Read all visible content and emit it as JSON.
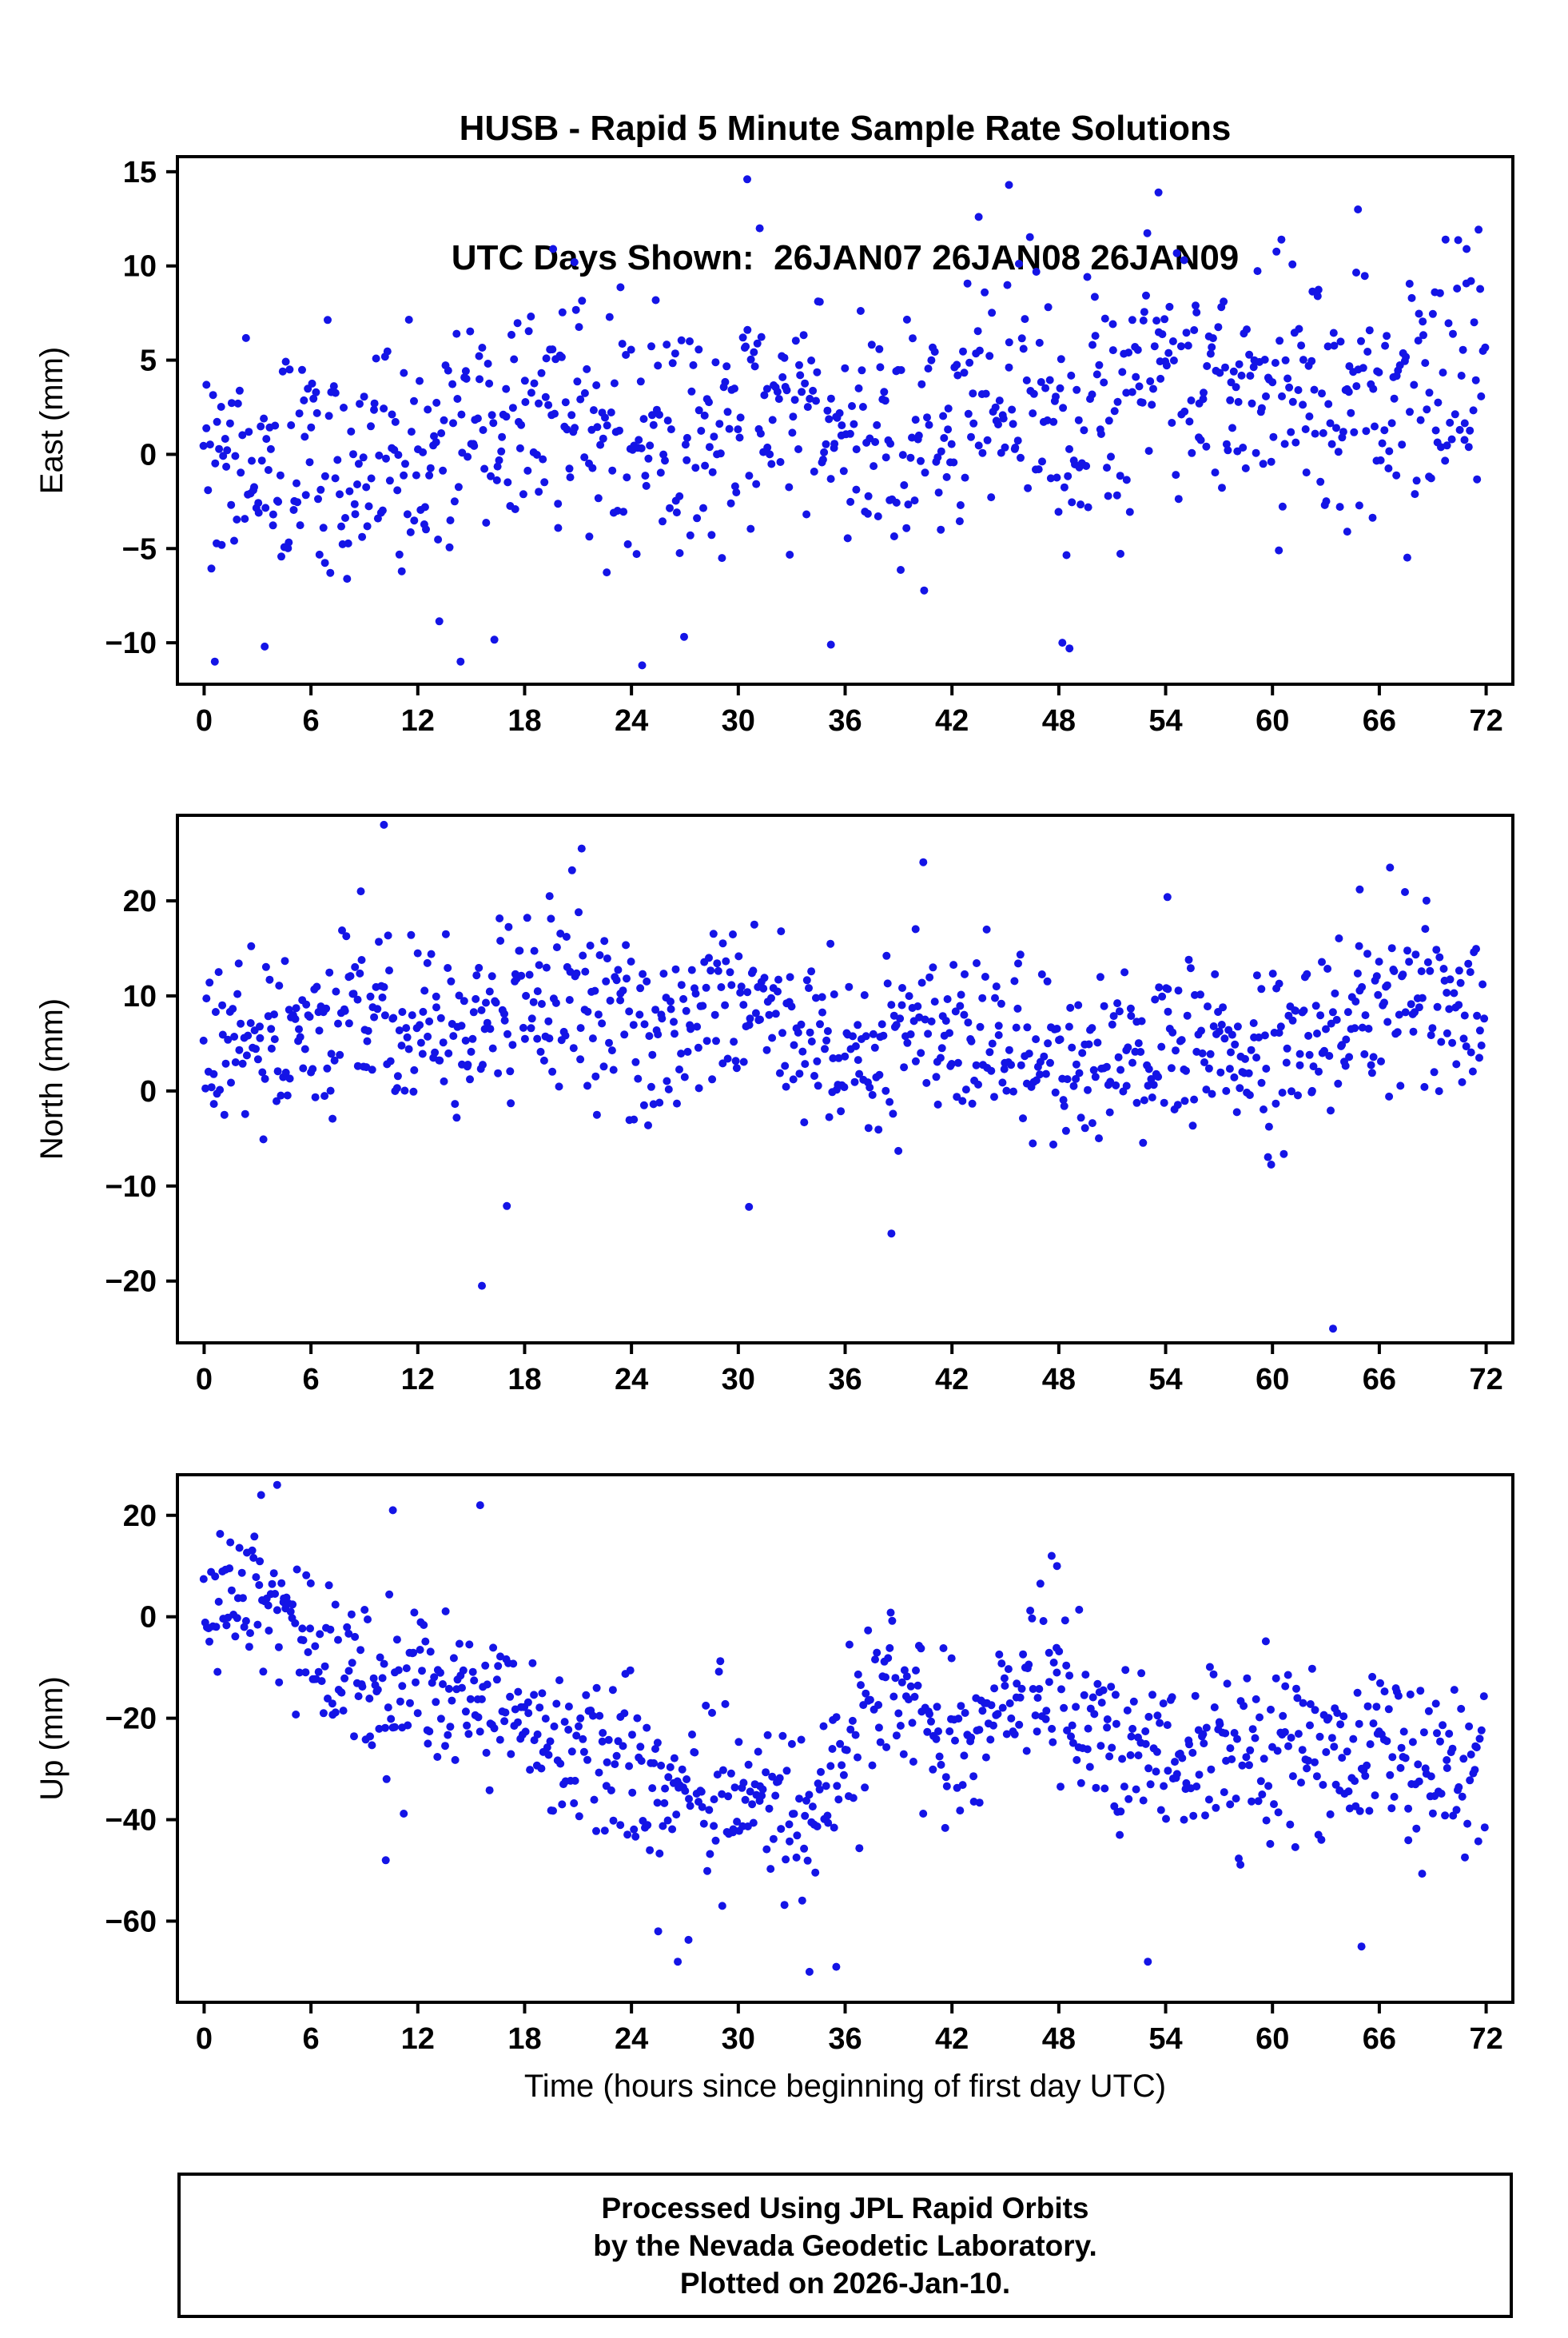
{
  "title": {
    "line1": "HUSB - Rapid 5 Minute Sample Rate Solutions",
    "line2": "UTC Days Shown:  26JAN07 26JAN08 26JAN09"
  },
  "xlabel": "Time (hours since beginning of first day UTC)",
  "footer": {
    "line1": "Processed Using JPL Rapid Orbits",
    "line2": "by the Nevada Geodetic Laboratory.",
    "line3": "Plotted on 2026-Jan-10."
  },
  "point_color": "#1414e6",
  "chart_data": [
    {
      "type": "scatter",
      "series_name": "East",
      "ylabel": "East (mm)",
      "xlabel": "",
      "xlim": [
        -1.5,
        73.5
      ],
      "ylim": [
        -12.2,
        15.8
      ],
      "xticks": [
        0,
        6,
        12,
        18,
        24,
        30,
        36,
        42,
        48,
        54,
        60,
        66,
        72
      ],
      "yticks": [
        -10,
        -5,
        0,
        5,
        10,
        15
      ],
      "n_points": 864,
      "sample_interval_minutes": 5,
      "noise_sd": 3.3,
      "mean_keypoints": [
        [
          0,
          -0.5
        ],
        [
          6,
          -0.5
        ],
        [
          12,
          0
        ],
        [
          18,
          1.5
        ],
        [
          21,
          3
        ],
        [
          24,
          0.5
        ],
        [
          27,
          0.5
        ],
        [
          30,
          2
        ],
        [
          33,
          2
        ],
        [
          36,
          1
        ],
        [
          39,
          1.5
        ],
        [
          42,
          1
        ],
        [
          45,
          2.5
        ],
        [
          48,
          1
        ],
        [
          51,
          4
        ],
        [
          54,
          4.5
        ],
        [
          57,
          3.5
        ],
        [
          60,
          3
        ],
        [
          63,
          3.5
        ],
        [
          66,
          4
        ],
        [
          69,
          3
        ],
        [
          72,
          3.5
        ]
      ],
      "outliers": [
        [
          30.5,
          14.6
        ],
        [
          45.2,
          14.3
        ],
        [
          53.6,
          13.9
        ],
        [
          43.5,
          12.6
        ],
        [
          31.2,
          12.0
        ],
        [
          19.6,
          10.9
        ],
        [
          20.8,
          10.2
        ],
        [
          60.5,
          11.4
        ],
        [
          64.8,
          13.0
        ],
        [
          0.6,
          -11.0
        ],
        [
          14.4,
          -11.0
        ],
        [
          24.6,
          -11.2
        ],
        [
          3.4,
          -10.2
        ],
        [
          35.2,
          -10.1
        ],
        [
          48.2,
          -10.0
        ],
        [
          48.6,
          -10.3
        ],
        [
          64.2,
          -4.1
        ],
        [
          70.9,
          10.9
        ]
      ]
    },
    {
      "type": "scatter",
      "series_name": "North",
      "ylabel": "North (mm)",
      "xlabel": "",
      "xlim": [
        -1.5,
        73.5
      ],
      "ylim": [
        -26.5,
        29.0
      ],
      "xticks": [
        0,
        6,
        12,
        18,
        24,
        30,
        36,
        42,
        48,
        54,
        60,
        66,
        72
      ],
      "yticks": [
        -20,
        -10,
        0,
        10,
        20
      ],
      "n_points": 864,
      "sample_interval_minutes": 5,
      "noise_sd": 4.8,
      "mean_keypoints": [
        [
          0,
          4
        ],
        [
          3,
          5
        ],
        [
          6,
          6
        ],
        [
          9,
          10
        ],
        [
          12,
          7
        ],
        [
          15,
          6
        ],
        [
          18,
          9
        ],
        [
          21,
          10
        ],
        [
          24,
          7
        ],
        [
          27,
          6
        ],
        [
          30,
          8
        ],
        [
          33,
          6
        ],
        [
          36,
          4
        ],
        [
          39,
          5
        ],
        [
          42,
          7
        ],
        [
          45,
          4
        ],
        [
          48,
          4
        ],
        [
          51,
          4
        ],
        [
          54,
          4
        ],
        [
          57,
          6
        ],
        [
          60,
          5
        ],
        [
          63,
          6
        ],
        [
          66,
          9
        ],
        [
          69,
          9
        ],
        [
          72,
          10
        ]
      ],
      "outliers": [
        [
          10.1,
          28.0
        ],
        [
          21.2,
          25.5
        ],
        [
          15.6,
          -20.5
        ],
        [
          63.4,
          -25.0
        ],
        [
          30.6,
          -12.2
        ],
        [
          38.6,
          -15.0
        ],
        [
          17.0,
          -12.1
        ],
        [
          8.8,
          21.0
        ],
        [
          19.4,
          20.5
        ],
        [
          66.6,
          23.5
        ],
        [
          64.9,
          21.2
        ],
        [
          54.1,
          20.4
        ]
      ]
    },
    {
      "type": "scatter",
      "series_name": "Up",
      "ylabel": "Up (mm)",
      "xlabel": "Time (hours since beginning of first day UTC)",
      "xlim": [
        -1.5,
        73.5
      ],
      "ylim": [
        -76.0,
        28.0
      ],
      "xticks": [
        0,
        6,
        12,
        18,
        24,
        30,
        36,
        42,
        48,
        54,
        60,
        66,
        72
      ],
      "yticks": [
        -60,
        -40,
        -20,
        0,
        20
      ],
      "n_points": 864,
      "sample_interval_minutes": 5,
      "noise_sd": 8.5,
      "mean_keypoints": [
        [
          0,
          0
        ],
        [
          2,
          3
        ],
        [
          4,
          5
        ],
        [
          6,
          -8
        ],
        [
          9,
          -12
        ],
        [
          12,
          -14
        ],
        [
          15,
          -15
        ],
        [
          18,
          -22
        ],
        [
          21,
          -26
        ],
        [
          24,
          -32
        ],
        [
          27,
          -35
        ],
        [
          30,
          -30
        ],
        [
          32,
          -40
        ],
        [
          34,
          -42
        ],
        [
          36,
          -25
        ],
        [
          38,
          -15
        ],
        [
          40,
          -20
        ],
        [
          42,
          -25
        ],
        [
          44,
          -20
        ],
        [
          46,
          -15
        ],
        [
          48,
          -12
        ],
        [
          50,
          -25
        ],
        [
          52,
          -28
        ],
        [
          54,
          -30
        ],
        [
          56,
          -25
        ],
        [
          58,
          -28
        ],
        [
          60,
          -25
        ],
        [
          62,
          -28
        ],
        [
          64,
          -32
        ],
        [
          66,
          -25
        ],
        [
          68,
          -30
        ],
        [
          70,
          -32
        ],
        [
          72,
          -28
        ]
      ],
      "outliers": [
        [
          25.5,
          -62
        ],
        [
          26.6,
          -68
        ],
        [
          29.1,
          -57
        ],
        [
          34.0,
          -70
        ],
        [
          35.5,
          -69
        ],
        [
          53.0,
          -68
        ],
        [
          65.0,
          -65
        ],
        [
          4.1,
          26
        ],
        [
          3.2,
          24
        ],
        [
          15.5,
          22
        ],
        [
          10.6,
          21
        ],
        [
          47.6,
          12
        ],
        [
          47.9,
          10
        ],
        [
          10.2,
          -48
        ]
      ]
    }
  ]
}
